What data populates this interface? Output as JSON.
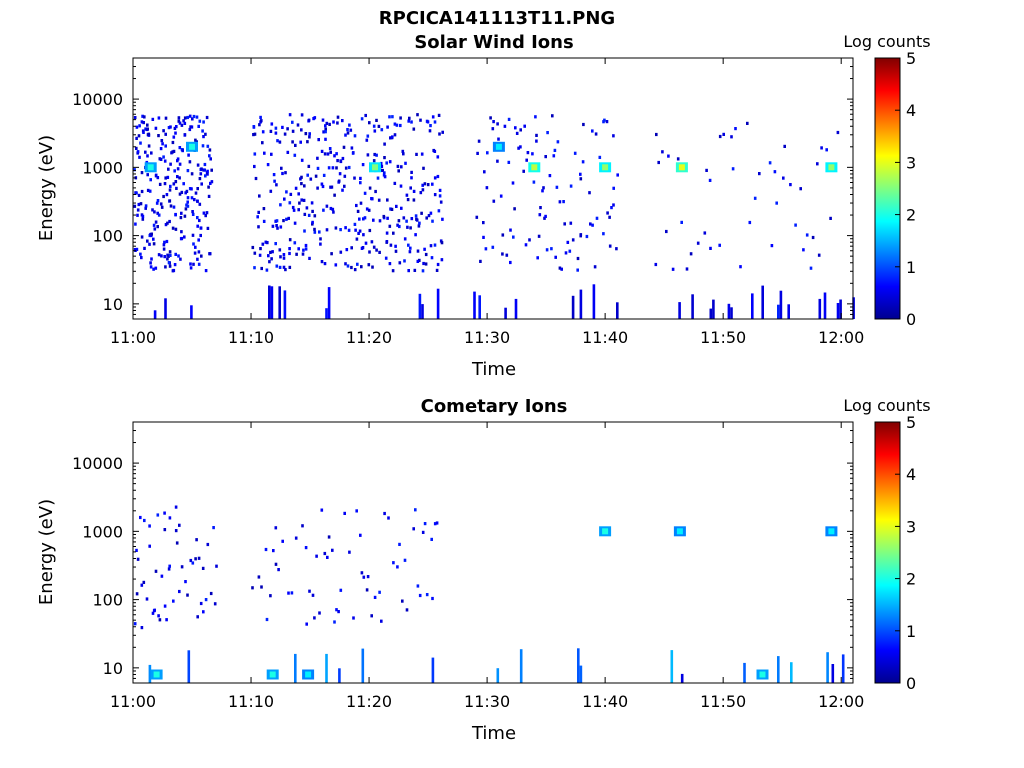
{
  "figure": {
    "title": "RPCICA141113T11.PNG"
  },
  "panels": [
    {
      "title": "Solar Wind Ions",
      "xlabel": "Time",
      "ylabel": "Energy (eV)",
      "colorbar_label": "Log counts"
    },
    {
      "title": "Cometary Ions",
      "xlabel": "Time",
      "ylabel": "Energy (eV)",
      "colorbar_label": "Log counts"
    }
  ],
  "x_ticks": [
    "11:00",
    "11:10",
    "11:20",
    "11:30",
    "11:40",
    "11:50",
    "12:00"
  ],
  "y_ticks": [
    "10",
    "100",
    "1000",
    "10000"
  ],
  "colorbar_ticks": [
    "0",
    "1",
    "2",
    "3",
    "4",
    "5"
  ],
  "colormap": [
    "#00008f",
    "#0000ff",
    "#0080ff",
    "#00ffff",
    "#80ff80",
    "#ffff00",
    "#ff8000",
    "#ff0000",
    "#800000"
  ],
  "chart_data": [
    {
      "type": "heatmap",
      "title": "Solar Wind Ions",
      "xlabel": "Time",
      "ylabel": "Energy (eV)",
      "y_scale": "log",
      "xlim_minutes_after_1100": [
        0,
        61
      ],
      "ylim": [
        6,
        40000
      ],
      "colorbar": {
        "label": "Log counts",
        "range": [
          0,
          5
        ]
      },
      "hot_spots": [
        {
          "time": "11:01:30",
          "energy": 1000,
          "log_counts": 2.0
        },
        {
          "time": "11:05",
          "energy": 2000,
          "log_counts": 2.0
        },
        {
          "time": "11:20:30",
          "energy": 1000,
          "log_counts": 2.5
        },
        {
          "time": "11:31",
          "energy": 2000,
          "log_counts": 1.8
        },
        {
          "time": "11:34",
          "energy": 1000,
          "log_counts": 2.8
        },
        {
          "time": "11:40",
          "energy": 1000,
          "log_counts": 2.6
        },
        {
          "time": "11:46:30",
          "energy": 1000,
          "log_counts": 3.0
        },
        {
          "time": "11:59:10",
          "energy": 1000,
          "log_counts": 2.6
        }
      ]
    },
    {
      "type": "heatmap",
      "title": "Cometary Ions",
      "xlabel": "Time",
      "ylabel": "Energy (eV)",
      "y_scale": "log",
      "xlim_minutes_after_1100": [
        0,
        61
      ],
      "ylim": [
        6,
        40000
      ],
      "colorbar": {
        "label": "Log counts",
        "range": [
          0,
          5
        ]
      },
      "hot_spots": [
        {
          "time": "11:02",
          "energy": 8,
          "log_counts": 2.0
        },
        {
          "time": "11:11:50",
          "energy": 8,
          "log_counts": 2.0
        },
        {
          "time": "11:14:50",
          "energy": 8,
          "log_counts": 1.8
        },
        {
          "time": "11:40",
          "energy": 1000,
          "log_counts": 2.0
        },
        {
          "time": "11:46:20",
          "energy": 1000,
          "log_counts": 1.8
        },
        {
          "time": "11:53:20",
          "energy": 8,
          "log_counts": 2.0
        },
        {
          "time": "11:59:10",
          "energy": 1000,
          "log_counts": 1.8
        }
      ]
    }
  ]
}
